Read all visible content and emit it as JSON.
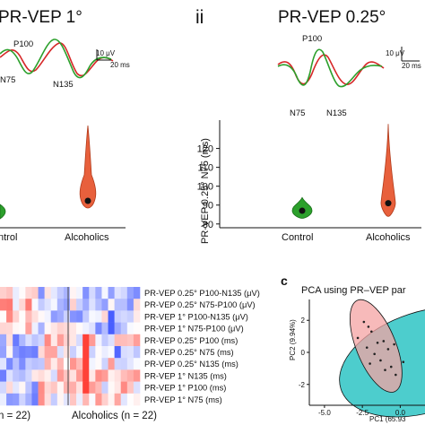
{
  "figure": {
    "panel_i": {
      "title": "PR-VEP 1°",
      "peaks": [
        "P100",
        "N75",
        "N135"
      ],
      "scale_uv": "10 μV",
      "scale_ms": "20 ms"
    },
    "panel_ii": {
      "numeral": "ii",
      "title": "PR-VEP 0.25°",
      "peaks": [
        "P100",
        "N75",
        "N135"
      ],
      "scale_uv": "10 μV",
      "scale_ms": "20 ms"
    },
    "violin_ii": {
      "ylabel": "PR-VEP 0.25° N75 (ms)",
      "yticks": [
        "80",
        "90",
        "100",
        "110",
        "120"
      ],
      "groups": [
        "Control",
        "Alcoholics"
      ]
    },
    "violin_i": {
      "groups_partial": [
        "ntrol",
        "Alcoholics"
      ]
    },
    "heatmap": {
      "rows": [
        "PR-VEP 0.25° P100-N135 (μV)",
        "PR-VEP 0.25° N75-P100 (μV)",
        "PR-VEP 1° P100-N135 (μV)",
        "PR-VEP 1° N75-P100 (μV)",
        "PR-VEP 0.25° P100 (ms)",
        "PR-VEP 0.25° N75 (ms)",
        "PR-VEP 0.25° N135 (ms)",
        "PR-VEP 1° N135 (ms)",
        "PR-VEP 1° P100 (ms)",
        "PR-VEP 1° N75 (ms)"
      ],
      "group_left": "n = 22)",
      "group_right": "Alcoholics (n = 22)"
    },
    "pca": {
      "letter": "c",
      "title": "PCA using PR–VEP par",
      "ylabel": "PC2 (9.94%)",
      "xlabel": "PC1 (65.93",
      "xticks": [
        "-5.0",
        "-2.5",
        "0.0",
        "2.5"
      ],
      "yticks": [
        "2",
        "0",
        "-2"
      ]
    },
    "colors": {
      "control": "#2ca02c",
      "alcoholics": "#d62728",
      "ellipse_teal": "#2ec4c4",
      "ellipse_pink": "#f4a3a3"
    }
  },
  "chart_data": [
    {
      "type": "violin",
      "title": "",
      "ylabel": "PR-VEP 0.25° N75 (ms)",
      "categories": [
        "Control",
        "Alcoholics"
      ],
      "ylim": [
        78,
        135
      ],
      "series": [
        {
          "name": "Control",
          "median": 87,
          "min": 83,
          "max": 94
        },
        {
          "name": "Alcoholics",
          "median": 91,
          "min": 84,
          "max": 133
        }
      ]
    },
    {
      "type": "scatter",
      "title": "PCA using PR–VEP par",
      "xlabel": "PC1 (65.93",
      "ylabel": "PC2 (9.94%)",
      "xlim": [
        -6,
        4
      ],
      "ylim": [
        -3.3,
        3.3
      ],
      "series": [
        {
          "points": [
            [
              -2.4,
              1.9
            ],
            [
              -2.1,
              1.6
            ],
            [
              -1.9,
              1.3
            ],
            [
              -2.8,
              0.9
            ],
            [
              -1.5,
              0.6
            ],
            [
              -1.1,
              0.7
            ],
            [
              -2.2,
              0.3
            ],
            [
              -1.7,
              -0.1
            ],
            [
              -0.8,
              0.2
            ],
            [
              -1.3,
              -0.5
            ],
            [
              -0.6,
              -0.9
            ],
            [
              -2.0,
              -0.7
            ],
            [
              -0.3,
              -1.4
            ],
            [
              -1.0,
              -1.1
            ],
            [
              0.2,
              -0.6
            ],
            [
              -0.4,
              0.5
            ]
          ]
        }
      ]
    }
  ]
}
